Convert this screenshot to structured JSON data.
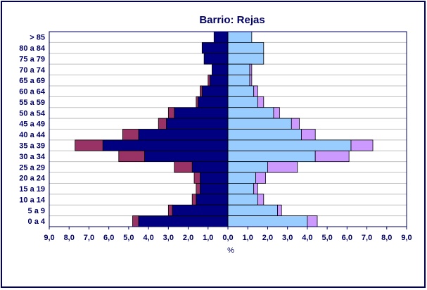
{
  "chart_data": {
    "type": "pyramid",
    "title": "Barrio: Rejas",
    "xlabel": "%",
    "categories": [
      "> 85",
      "80 a 84",
      "75 a 79",
      "70 a 74",
      "65 a 69",
      "60 a 64",
      "55 a 59",
      "50 a 54",
      "45 a 49",
      "40 a 44",
      "35 a 39",
      "30 a 34",
      "25 a 29",
      "20 a 24",
      "15 a 19",
      "10 a 14",
      "5 a 9",
      "0 a 4"
    ],
    "series": [
      {
        "color": "#000080",
        "side": "left",
        "values": [
          -0.7,
          -1.3,
          -1.2,
          -0.8,
          -0.9,
          -1.3,
          -1.5,
          -2.7,
          -3.1,
          -4.5,
          -6.3,
          -4.2,
          -1.8,
          -1.4,
          -1.4,
          -1.6,
          -2.8,
          -4.5
        ]
      },
      {
        "color": "#993366",
        "side": "left",
        "values": [
          0,
          0,
          0,
          0,
          -0.1,
          -0.1,
          -0.1,
          -0.3,
          -0.4,
          -0.8,
          -1.4,
          -1.3,
          -0.9,
          -0.3,
          -0.2,
          -0.2,
          -0.2,
          -0.3
        ]
      },
      {
        "color": "#99ccff",
        "side": "right",
        "values": [
          1.2,
          1.8,
          1.8,
          1.1,
          1.1,
          1.3,
          1.5,
          2.3,
          3.2,
          3.7,
          6.2,
          4.4,
          2.0,
          1.4,
          1.3,
          1.5,
          2.5,
          4.0
        ]
      },
      {
        "color": "#cc99ff",
        "side": "right",
        "values": [
          0,
          0,
          0,
          0.1,
          0.1,
          0.2,
          0.3,
          0.3,
          0.4,
          0.7,
          1.1,
          1.7,
          1.5,
          0.5,
          0.2,
          0.3,
          0.2,
          0.5
        ]
      }
    ],
    "xlim": [
      -9,
      9
    ],
    "xticks": [
      {
        "value": -9,
        "label": "9,0"
      },
      {
        "value": -8,
        "label": "8,0"
      },
      {
        "value": -7,
        "label": "7,0"
      },
      {
        "value": -6,
        "label": "6,0"
      },
      {
        "value": -5,
        "label": "5,0"
      },
      {
        "value": -4,
        "label": "4,0"
      },
      {
        "value": -3,
        "label": "3,0"
      },
      {
        "value": -2,
        "label": "2,0"
      },
      {
        "value": -1,
        "label": "1,0"
      },
      {
        "value": 0,
        "label": "0,0"
      },
      {
        "value": 1,
        "label": "1,0"
      },
      {
        "value": 2,
        "label": "2,0"
      },
      {
        "value": 3,
        "label": "3,0"
      },
      {
        "value": 4,
        "label": "4,0"
      },
      {
        "value": 5,
        "label": "5,0"
      },
      {
        "value": 6,
        "label": "6,0"
      },
      {
        "value": 7,
        "label": "7,0"
      },
      {
        "value": 8,
        "label": "8,0"
      },
      {
        "value": 9,
        "label": "9,0"
      }
    ]
  }
}
